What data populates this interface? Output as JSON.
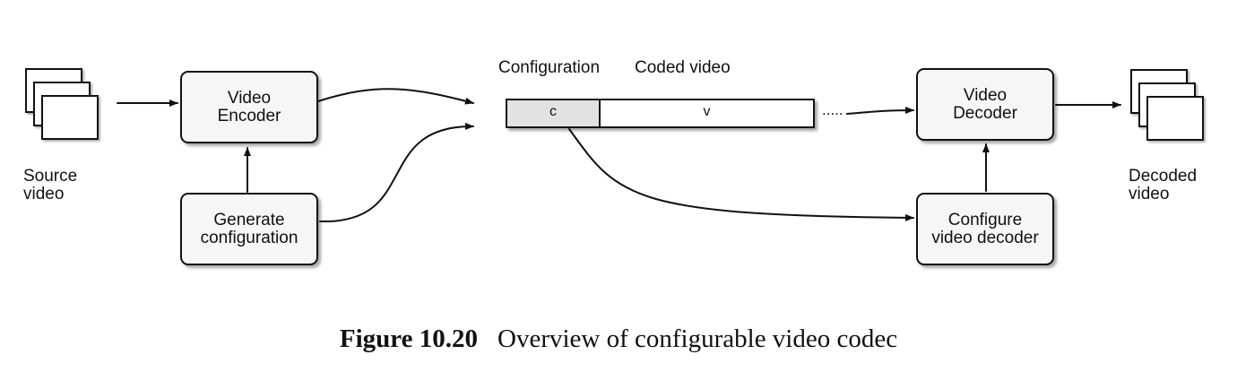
{
  "labels": {
    "source_video": "Source\nvideo",
    "decoded_video": "Decoded\nvideo",
    "configuration": "Configuration",
    "coded_video": "Coded video",
    "dots": "....."
  },
  "boxes": {
    "video_encoder": "Video\nEncoder",
    "generate_configuration": "Generate\nconfiguration",
    "video_decoder": "Video\nDecoder",
    "configure_video_decoder": "Configure\nvideo decoder"
  },
  "bitstream": {
    "config_segment": "c",
    "video_segment": "v"
  },
  "caption": {
    "number": "Figure 10.20",
    "text": "Overview of configurable video codec"
  }
}
